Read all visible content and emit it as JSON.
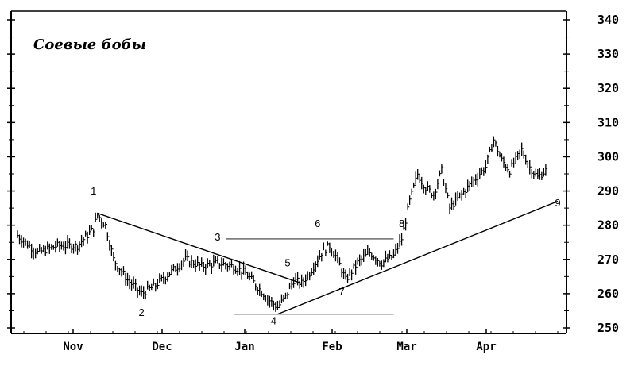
{
  "chart_data": {
    "type": "bar",
    "subtype": "OHLC price bars",
    "title": "Соевые бобы",
    "xlabel": "",
    "ylabel": "",
    "ylim": [
      250,
      340
    ],
    "y_ticks": [
      "340",
      "330",
      "320",
      "310",
      "300",
      "290",
      "280",
      "270",
      "260",
      "250"
    ],
    "y_axis_side": "right",
    "x_ticks": [
      "Nov",
      "Dec",
      "Jan",
      "Feb",
      "Mar",
      "Apr"
    ],
    "grid": false,
    "price_path_keypoints": [
      {
        "bar": 0,
        "price": 277
      },
      {
        "bar": 10,
        "price": 272
      },
      {
        "bar": 20,
        "price": 274
      },
      {
        "bar": 30,
        "price": 274
      },
      {
        "bar": 38,
        "price": 279
      },
      {
        "bar": 40,
        "price": 283
      },
      {
        "bar": 44,
        "price": 280
      },
      {
        "bar": 48,
        "price": 270
      },
      {
        "bar": 55,
        "price": 264
      },
      {
        "bar": 62,
        "price": 260
      },
      {
        "bar": 68,
        "price": 262
      },
      {
        "bar": 76,
        "price": 266
      },
      {
        "bar": 84,
        "price": 270
      },
      {
        "bar": 92,
        "price": 268
      },
      {
        "bar": 100,
        "price": 269
      },
      {
        "bar": 108,
        "price": 268
      },
      {
        "bar": 114,
        "price": 266
      },
      {
        "bar": 120,
        "price": 262
      },
      {
        "bar": 126,
        "price": 258
      },
      {
        "bar": 130,
        "price": 256
      },
      {
        "bar": 134,
        "price": 259
      },
      {
        "bar": 138,
        "price": 264
      },
      {
        "bar": 142,
        "price": 263
      },
      {
        "bar": 146,
        "price": 266
      },
      {
        "bar": 152,
        "price": 272
      },
      {
        "bar": 156,
        "price": 274
      },
      {
        "bar": 160,
        "price": 270
      },
      {
        "bar": 164,
        "price": 264
      },
      {
        "bar": 170,
        "price": 269
      },
      {
        "bar": 176,
        "price": 272
      },
      {
        "bar": 182,
        "price": 269
      },
      {
        "bar": 188,
        "price": 271
      },
      {
        "bar": 192,
        "price": 276
      },
      {
        "bar": 196,
        "price": 287
      },
      {
        "bar": 200,
        "price": 295
      },
      {
        "bar": 204,
        "price": 291
      },
      {
        "bar": 208,
        "price": 289
      },
      {
        "bar": 212,
        "price": 296
      },
      {
        "bar": 216,
        "price": 285
      },
      {
        "bar": 222,
        "price": 289
      },
      {
        "bar": 228,
        "price": 293
      },
      {
        "bar": 234,
        "price": 297
      },
      {
        "bar": 238,
        "price": 305
      },
      {
        "bar": 242,
        "price": 299
      },
      {
        "bar": 246,
        "price": 296
      },
      {
        "bar": 252,
        "price": 302
      },
      {
        "bar": 256,
        "price": 297
      },
      {
        "bar": 260,
        "price": 294
      },
      {
        "bar": 264,
        "price": 296
      }
    ],
    "trendlines": [
      {
        "name": "downtrend",
        "from": {
          "bar": 40,
          "price": 283.5
        },
        "to": {
          "bar": 142,
          "price": 263
        }
      },
      {
        "name": "uptrend",
        "from": {
          "bar": 130,
          "price": 254
        },
        "to": {
          "bar": 270,
          "price": 287
        }
      },
      {
        "name": "resistance",
        "from": {
          "bar": 104,
          "price": 276
        },
        "to": {
          "bar": 188,
          "price": 276
        }
      },
      {
        "name": "support",
        "from": {
          "bar": 108,
          "price": 254
        },
        "to": {
          "bar": 188,
          "price": 254
        }
      }
    ],
    "annotations": [
      {
        "text": "1",
        "bar": 38,
        "price": 289
      },
      {
        "text": "2",
        "bar": 62,
        "price": 253.5
      },
      {
        "text": "3",
        "bar": 100,
        "price": 275.5
      },
      {
        "text": "4",
        "bar": 128,
        "price": 251
      },
      {
        "text": "5",
        "bar": 135,
        "price": 268
      },
      {
        "text": "6",
        "bar": 150,
        "price": 279.5
      },
      {
        "text": "7",
        "bar": 162,
        "price": 259.5
      },
      {
        "text": "8",
        "bar": 192,
        "price": 279.5
      },
      {
        "text": "9",
        "bar": 270,
        "price": 285.5
      }
    ]
  }
}
